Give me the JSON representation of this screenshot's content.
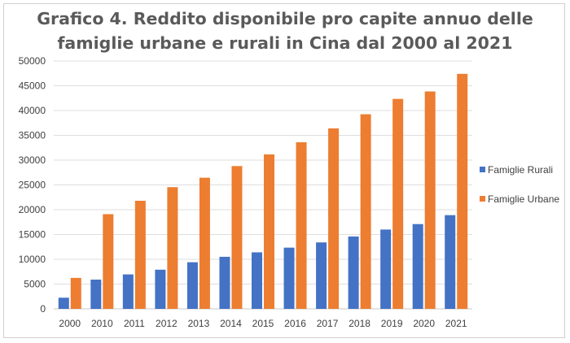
{
  "chart_data": {
    "type": "bar",
    "title_lines": [
      "Grafico 4. Reddito disponibile pro capite annuo delle",
      "famiglie urbane e rurali in Cina dal 2000 al 2021"
    ],
    "categories": [
      "2000",
      "2010",
      "2011",
      "2012",
      "2013",
      "2014",
      "2015",
      "2016",
      "2017",
      "2018",
      "2019",
      "2020",
      "2021"
    ],
    "series": [
      {
        "name": "Famiglie Rurali",
        "color": "#4472c4",
        "values": [
          2250,
          5900,
          6950,
          7900,
          9400,
          10500,
          11400,
          12350,
          13400,
          14600,
          16000,
          17100,
          18900
        ]
      },
      {
        "name": "Famiglie Urbane",
        "color": "#ed7d31",
        "values": [
          6250,
          19100,
          21800,
          24550,
          26450,
          28800,
          31150,
          33600,
          36400,
          39250,
          42350,
          43850,
          47400
        ]
      }
    ],
    "ylim": [
      0,
      50000
    ],
    "yticks": [
      "0",
      "5000",
      "10000",
      "15000",
      "20000",
      "25000",
      "30000",
      "35000",
      "40000",
      "45000",
      "50000"
    ],
    "grid": true,
    "legend_position": "right",
    "xlabel": "",
    "ylabel": ""
  }
}
